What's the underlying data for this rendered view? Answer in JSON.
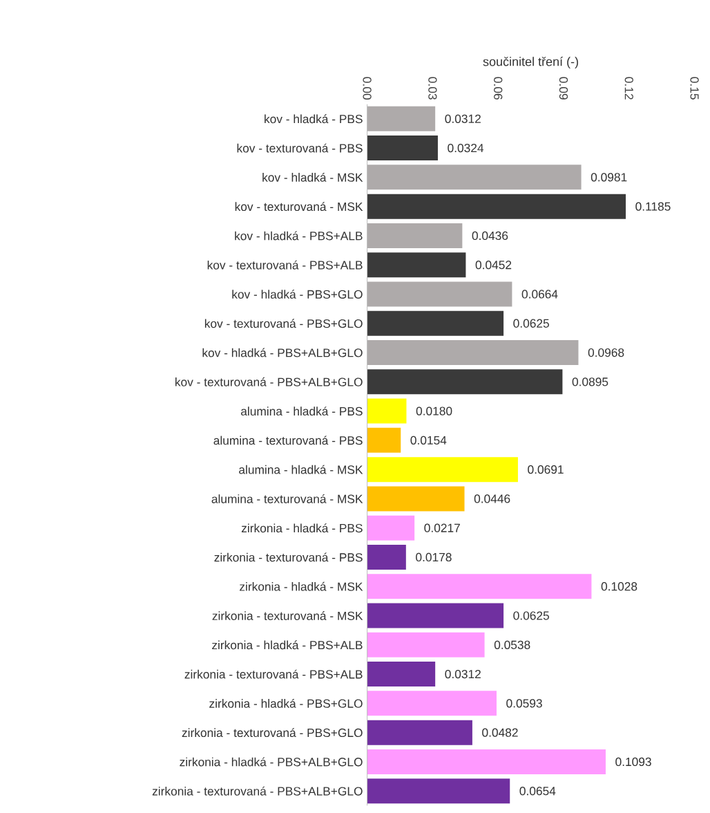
{
  "chart_data": {
    "type": "bar",
    "orientation": "horizontal",
    "xlabel": "součinitel tření (-)",
    "categories": [
      "kov - hladká - PBS",
      "kov - texturovaná - PBS",
      "kov - hladká - MSK",
      "kov - texturovaná - MSK",
      "kov - hladká - PBS+ALB",
      "kov - texturovaná - PBS+ALB",
      "kov - hladká - PBS+GLO",
      "kov - texturovaná - PBS+GLO",
      "kov - hladká - PBS+ALB+GLO",
      "kov - texturovaná - PBS+ALB+GLO",
      "alumina - hladká - PBS",
      "alumina - texturovaná - PBS",
      "alumina - hladká - MSK",
      "alumina - texturovaná - MSK",
      "zirkonia - hladká - PBS",
      "zirkonia - texturovaná - PBS",
      "zirkonia - hladká - MSK",
      "zirkonia - texturovaná - MSK",
      "zirkonia - hladká - PBS+ALB",
      "zirkonia - texturovaná - PBS+ALB",
      "zirkonia - hladká - PBS+GLO",
      "zirkonia - texturovaná - PBS+GLO",
      "zirkonia - hladká - PBS+ALB+GLO",
      "zirkonia - texturovaná - PBS+ALB+GLO"
    ],
    "values": [
      0.0312,
      0.0324,
      0.0981,
      0.1185,
      0.0436,
      0.0452,
      0.0664,
      0.0625,
      0.0968,
      0.0895,
      0.018,
      0.0154,
      0.0691,
      0.0446,
      0.0217,
      0.0178,
      0.1028,
      0.0625,
      0.0538,
      0.0312,
      0.0593,
      0.0482,
      0.1093,
      0.0654
    ],
    "value_labels": [
      "0.0312",
      "0.0324",
      "0.0981",
      "0.1185",
      "0.0436",
      "0.0452",
      "0.0664",
      "0.0625",
      "0.0968",
      "0.0895",
      "0.0180",
      "0.0154",
      "0.0691",
      "0.0446",
      "0.0217",
      "0.0178",
      "0.1028",
      "0.0625",
      "0.0538",
      "0.0312",
      "0.0593",
      "0.0482",
      "0.1093",
      "0.0654"
    ],
    "colors": [
      "#aeaaaa",
      "#3a3a3a",
      "#aeaaaa",
      "#3a3a3a",
      "#aeaaaa",
      "#3a3a3a",
      "#aeaaaa",
      "#3a3a3a",
      "#aeaaaa",
      "#3a3a3a",
      "#ffff00",
      "#ffc000",
      "#ffff00",
      "#ffc000",
      "#ff99ff",
      "#7030a0",
      "#ff99ff",
      "#7030a0",
      "#ff99ff",
      "#7030a0",
      "#ff99ff",
      "#7030a0",
      "#ff99ff",
      "#7030a0"
    ],
    "xlim": [
      0,
      0.15
    ],
    "xticks": [
      {
        "value": 0,
        "label": "0.00"
      },
      0.03,
      0.06,
      0.09,
      0.12,
      0.15
    ]
  }
}
